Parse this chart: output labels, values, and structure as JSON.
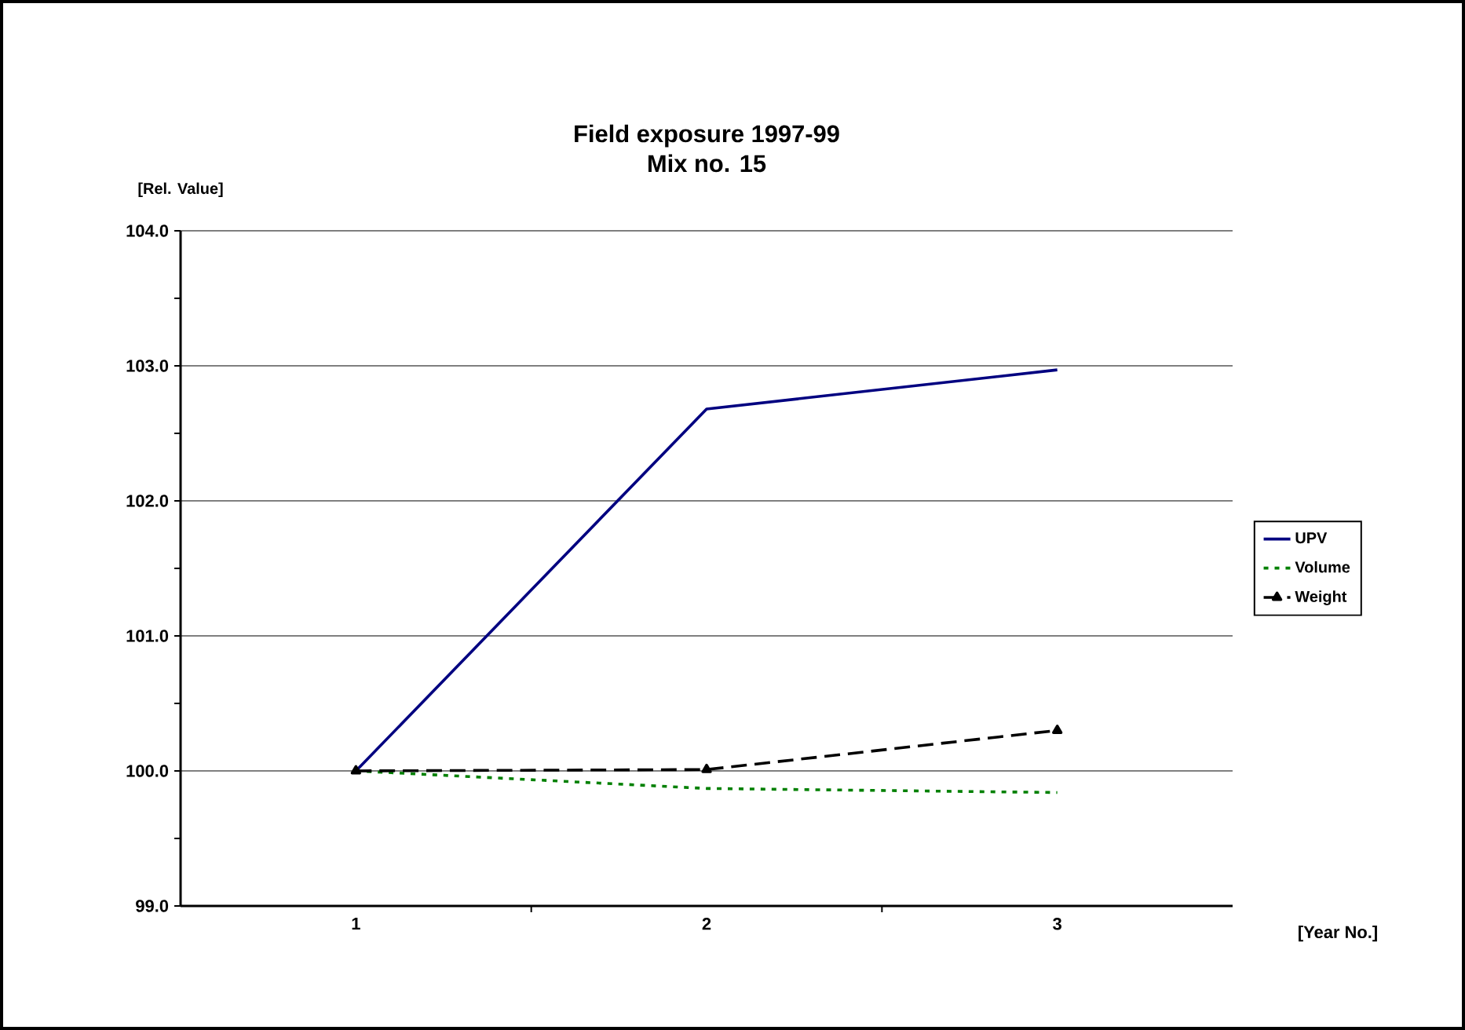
{
  "chart_data": {
    "type": "line",
    "title": "Field exposure 1997-99",
    "subtitle": "Mix no. 15",
    "xlabel": "[Year No.]",
    "ylabel": "[Rel. Value]",
    "categories": [
      "1",
      "2",
      "3"
    ],
    "series": [
      {
        "name": "UPV",
        "color": "#000080",
        "values": [
          100.0,
          102.68,
          102.97
        ],
        "line_style": "solid",
        "marker": "none"
      },
      {
        "name": "Volume",
        "color": "#008000",
        "values": [
          100.0,
          99.87,
          99.84
        ],
        "line_style": "dotted",
        "marker": "none"
      },
      {
        "name": "Weight",
        "color": "#000000",
        "values": [
          100.0,
          100.01,
          100.3
        ],
        "line_style": "dashed",
        "marker": "triangle"
      }
    ],
    "ylim": [
      99,
      104
    ],
    "yticks": [
      {
        "value": 99,
        "label": "99.0"
      },
      {
        "value": 99.5,
        "label": null
      },
      {
        "value": 100,
        "label": "100.0"
      },
      {
        "value": 100.5,
        "label": null
      },
      {
        "value": 101,
        "label": "101.0"
      },
      {
        "value": 101.5,
        "label": null
      },
      {
        "value": 102,
        "label": "102.0"
      },
      {
        "value": 102.5,
        "label": null
      },
      {
        "value": 103,
        "label": "103.0"
      },
      {
        "value": 103.5,
        "label": null
      },
      {
        "value": 104,
        "label": "104.0"
      }
    ],
    "grid": "y",
    "legend": "right"
  }
}
